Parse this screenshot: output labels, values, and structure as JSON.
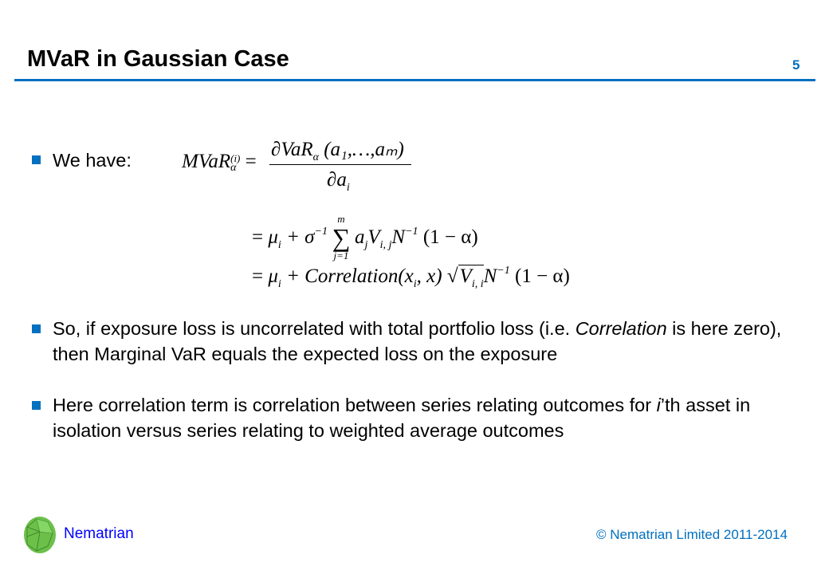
{
  "slide": {
    "title": "MVaR in Gaussian Case",
    "page_number": "5",
    "bullets": [
      {
        "text": "We have:"
      },
      {
        "pre": "So, if exposure loss is uncorrelated with total portfolio loss (i.e. ",
        "em": "Correlation",
        "post": " is here zero), then Marginal VaR equals the expected loss on the exposure"
      },
      {
        "pre": "Here correlation term is correlation between series relating outcomes for ",
        "em": "i",
        "post": "’th asset in isolation versus series relating to weighted average outcomes"
      }
    ],
    "equation": {
      "lhs": "MVaR",
      "lhs_sup": "(i)",
      "lhs_sub": "α",
      "eq": "=",
      "num_d": "∂VaR",
      "num_sub": "α",
      "num_args": "(a₁,…,aₘ)",
      "den": "∂a",
      "den_sub": "i",
      "l2_mu": "μ",
      "l2_mu_sub": "i",
      "l2_plus": "+ σ",
      "l2_sigma_sup": "−1",
      "sum": "∑",
      "sum_top": "m",
      "sum_bot": "j=1",
      "l2_a": "a",
      "l2_a_sub": "j",
      "l2_V": "V",
      "l2_V_sub": "i, j",
      "l2_N": "N",
      "l2_N_sup": "−1",
      "l2_tail": "(1 − α)",
      "l3_mu": "μ",
      "l3_mu_sub": "i",
      "l3_corr": "+ Correlation(x",
      "l3_x_sub": "i",
      "l3_corr_tail": ", x)",
      "l3_sqrt": "√",
      "l3_V": "V",
      "l3_V_sub": "i, i",
      "l3_N": "N",
      "l3_N_sup": "−1",
      "l3_tail": "(1 − α)"
    },
    "footer": {
      "brand": "Nematrian",
      "copyright": "© Nematrian Limited 2011-2014"
    },
    "colors": {
      "accent": "#0070C0",
      "brand_text": "#0000FF"
    }
  }
}
